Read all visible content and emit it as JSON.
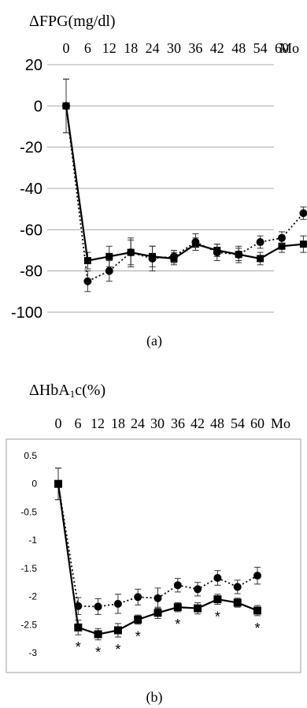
{
  "chart_data": [
    {
      "type": "line",
      "panel_label": "(a)",
      "ylabel": "ΔFPG(mg/dl)",
      "xlabel": "Mo",
      "x_ticks": [
        "0",
        "6",
        "12",
        "18",
        "24",
        "30",
        "36",
        "42",
        "48",
        "54",
        "60"
      ],
      "x": [
        0,
        6,
        12,
        18,
        24,
        30,
        36,
        42,
        48,
        54,
        60
      ],
      "y_ticks": [
        "20",
        "0",
        "-20",
        "-40",
        "-60",
        "-80",
        "-100"
      ],
      "ylim": [
        -100,
        20
      ],
      "grid": true,
      "series": [
        {
          "style": "solid-square",
          "values": [
            0,
            -75,
            -73,
            -71,
            -73,
            -74,
            -67,
            -70,
            -72,
            -74,
            -68,
            -67
          ],
          "errors": [
            13,
            4,
            5,
            6,
            5,
            3,
            3,
            3,
            3,
            3,
            3,
            4
          ],
          "x": [
            0,
            6,
            12,
            18,
            24,
            30,
            36,
            42,
            48,
            54,
            60,
            66
          ]
        },
        {
          "style": "dotted-circle",
          "values": [
            0,
            -85,
            -80,
            -71,
            -74,
            -73,
            -66,
            -71,
            -72,
            -66,
            -64,
            -52
          ],
          "errors": [
            13,
            5,
            5,
            7,
            6,
            3,
            4,
            4,
            4,
            3,
            3,
            3
          ],
          "x": [
            0,
            6,
            12,
            18,
            24,
            30,
            36,
            42,
            48,
            54,
            60,
            66
          ]
        }
      ]
    },
    {
      "type": "line",
      "panel_label": "(b)",
      "ylabel": "ΔHbA1c(%)",
      "ylabel_main": "ΔHbA",
      "ylabel_sub": "1",
      "ylabel_end": "c(%)",
      "xlabel": "Mo",
      "x_ticks": [
        "0",
        "6",
        "12",
        "18",
        "24",
        "30",
        "36",
        "42",
        "48",
        "54",
        "60"
      ],
      "y_ticks": [
        "0.5",
        "0",
        "-0.5",
        "-1",
        "-1.5",
        "-2",
        "-2.5",
        "-3"
      ],
      "ylim": [
        -3,
        0.5
      ],
      "grid": false,
      "series": [
        {
          "style": "solid-square",
          "values": [
            0,
            -2.55,
            -2.67,
            -2.6,
            -2.41,
            -2.29,
            -2.19,
            -2.21,
            -2.05,
            -2.11,
            -2.25
          ],
          "errors": [
            0.28,
            0.13,
            0.1,
            0.12,
            0.08,
            0.1,
            0.08,
            0.1,
            0.09,
            0.08,
            0.09
          ],
          "x": [
            0,
            6,
            12,
            18,
            24,
            30,
            36,
            42,
            48,
            54,
            60
          ]
        },
        {
          "style": "dotted-circle",
          "values": [
            0,
            -2.17,
            -2.18,
            -2.13,
            -2.01,
            -2.03,
            -1.8,
            -1.87,
            -1.67,
            -1.83,
            -1.63
          ],
          "errors": [
            0.28,
            0.15,
            0.14,
            0.17,
            0.14,
            0.18,
            0.12,
            0.12,
            0.13,
            0.12,
            0.15
          ],
          "x": [
            0,
            6,
            12,
            18,
            24,
            30,
            36,
            42,
            48,
            54,
            60
          ]
        }
      ],
      "annotations": [
        {
          "text": "*",
          "x": 6
        },
        {
          "text": "*",
          "x": 12
        },
        {
          "text": "*",
          "x": 18
        },
        {
          "text": "*",
          "x": 24
        },
        {
          "text": "*",
          "x": 36
        },
        {
          "text": "*",
          "x": 48
        },
        {
          "text": "*",
          "x": 60
        }
      ]
    }
  ]
}
